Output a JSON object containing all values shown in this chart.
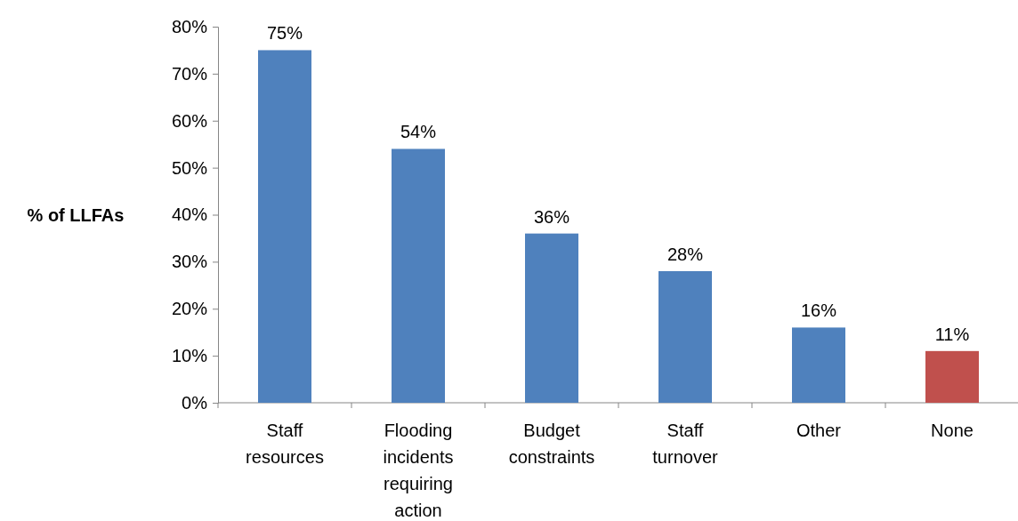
{
  "chart_data": {
    "type": "bar",
    "ylabel": "% of LLFAs",
    "categories": [
      "Staff resources",
      "Flooding incidents requiring action",
      "Budget constraints",
      "Staff turnover",
      "Other",
      "None"
    ],
    "values": [
      75,
      54,
      36,
      28,
      16,
      11
    ],
    "colors": [
      "#4f81bd",
      "#4f81bd",
      "#4f81bd",
      "#4f81bd",
      "#4f81bd",
      "#c0504d"
    ],
    "value_labels": [
      "75%",
      "54%",
      "36%",
      "28%",
      "16%",
      "11%"
    ],
    "ylim": [
      0,
      80
    ],
    "yticks": [
      {
        "value": 0,
        "label": "0%"
      },
      {
        "value": 10,
        "label": "10%"
      },
      {
        "value": 20,
        "label": "20%"
      },
      {
        "value": 30,
        "label": "30%"
      },
      {
        "value": 40,
        "label": "40%"
      },
      {
        "value": 50,
        "label": "50%"
      },
      {
        "value": 60,
        "label": "60%"
      },
      {
        "value": 70,
        "label": "70%"
      },
      {
        "value": 80,
        "label": "80%"
      }
    ],
    "grid": false
  }
}
